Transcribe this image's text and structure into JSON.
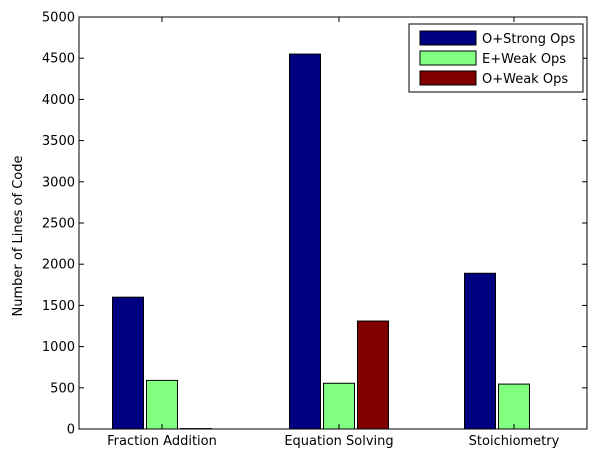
{
  "chart_data": {
    "type": "bar",
    "ylabel": "Number of Lines of Code",
    "xlabel": "",
    "ylim": [
      0,
      5000
    ],
    "yticks": [
      0,
      500,
      1000,
      1500,
      2000,
      2500,
      3000,
      3500,
      4000,
      4500,
      5000
    ],
    "categories": [
      "Fraction Addition",
      "Equation Solving",
      "Stoichiometry"
    ],
    "series": [
      {
        "name": "O+Strong Ops",
        "color": "#000080",
        "values": [
          1600,
          4550,
          1890
        ]
      },
      {
        "name": "E+Weak Ops",
        "color": "#80ff80",
        "values": [
          590,
          555,
          545
        ]
      },
      {
        "name": "O+Weak Ops",
        "color": "#800000",
        "values": [
          5,
          1310,
          0
        ]
      }
    ],
    "legend_position": "top-right",
    "grid": false
  }
}
